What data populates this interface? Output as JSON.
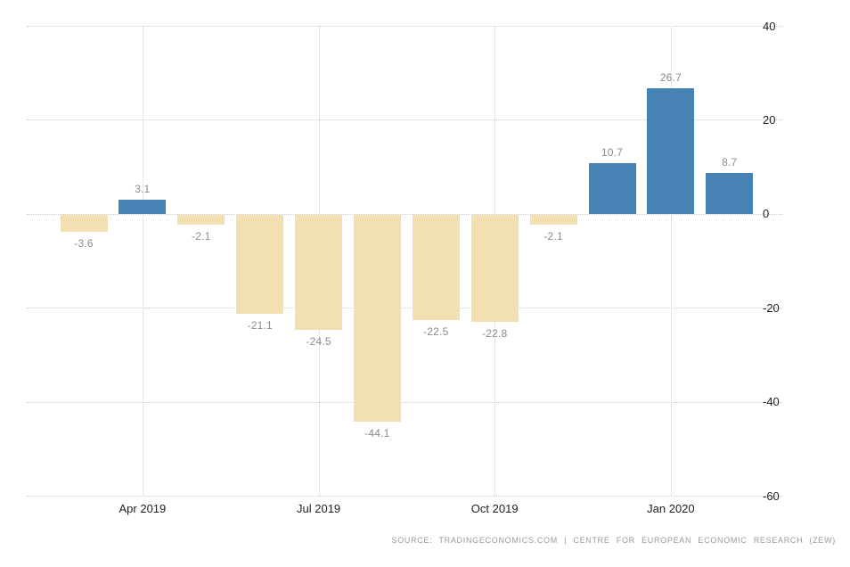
{
  "chart_data": {
    "type": "bar",
    "title": "",
    "xlabel": "",
    "ylabel": "",
    "values": [
      -3.6,
      3.1,
      -2.1,
      -21.1,
      -24.5,
      -44.1,
      -22.5,
      -22.8,
      -2.1,
      10.7,
      26.7,
      8.7
    ],
    "bar_labels": [
      "-3.6",
      "3.1",
      "-2.1",
      "-21.1",
      "-24.5",
      "-44.1",
      "-22.5",
      "-22.8",
      "-2.1",
      "10.7",
      "26.7",
      "8.7"
    ],
    "x_ticks": [
      {
        "label": "Apr 2019",
        "bar_index": 1
      },
      {
        "label": "Jul 2019",
        "bar_index": 4
      },
      {
        "label": "Oct 2019",
        "bar_index": 7
      },
      {
        "label": "Jan 2020",
        "bar_index": 10
      }
    ],
    "y_ticks": [
      "40",
      "20",
      "0",
      "-20",
      "-40",
      "-60"
    ],
    "ylim": [
      -60,
      40
    ],
    "grid": "dotted",
    "legend": "none",
    "colors": {
      "positive_bar": "#4682B4",
      "negative_bar": "#F2DFB2",
      "value_label": "#8C8C8C",
      "axis_label": "#1F1F1F",
      "gridline": "#CCCCCC",
      "background": "#FFFFFF"
    }
  },
  "footer": {
    "source_text": "SOURCE: TRADINGECONOMICS.COM | CENTRE FOR EUROPEAN ECONOMIC RESEARCH (ZEW)"
  }
}
